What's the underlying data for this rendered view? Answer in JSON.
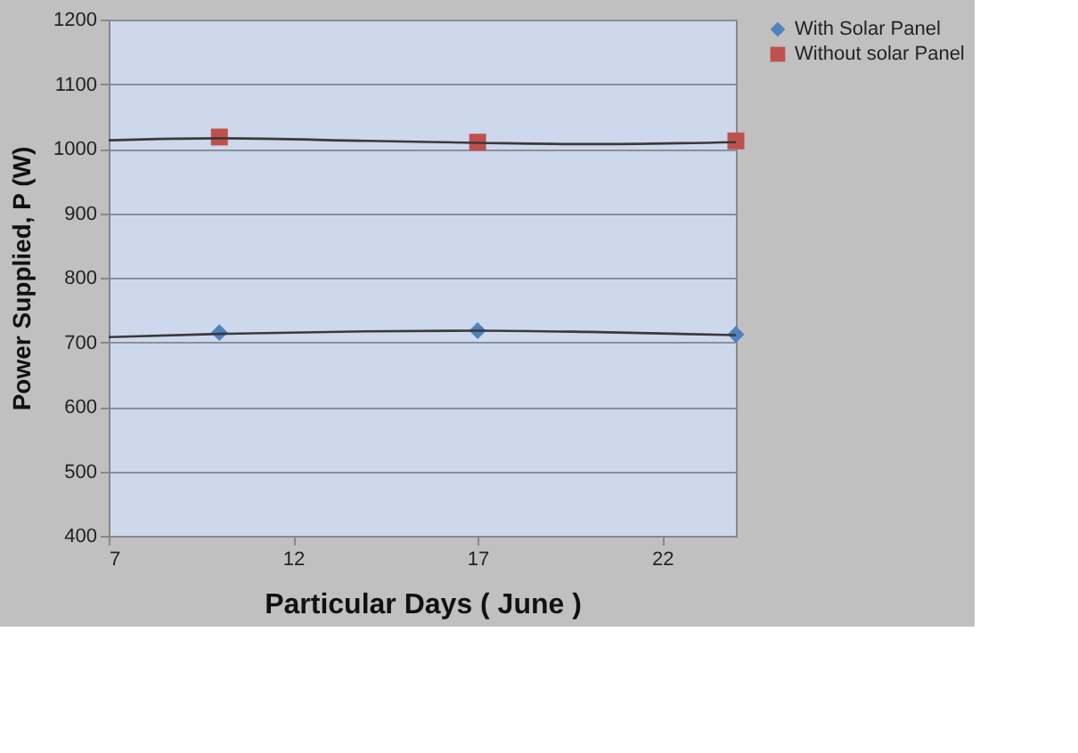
{
  "chart_data": {
    "type": "scatter",
    "xlabel": "Particular Days ( June )",
    "ylabel": "Power Supplied, P (W)",
    "xlim": [
      7,
      24
    ],
    "xticks": [
      7,
      12,
      17,
      22
    ],
    "ylim": [
      400,
      1200
    ],
    "yticks": [
      400,
      500,
      600,
      700,
      800,
      900,
      1000,
      1100,
      1200
    ],
    "grid": "y",
    "legend": "top right",
    "series": [
      {
        "name": "With Solar Panel",
        "color": "#4f81bd",
        "marker": "diamond",
        "x": [
          10,
          17,
          24
        ],
        "values": [
          715,
          718,
          712
        ]
      },
      {
        "name": "Without solar Panel",
        "color": "#c0504d",
        "marker": "square",
        "x": [
          10,
          17,
          24
        ],
        "values": [
          1018,
          1010,
          1012
        ]
      },
      {
        "type": "line",
        "color": "#3a3a3a",
        "marker": "none",
        "x": [
          7,
          10,
          14,
          17,
          20,
          24
        ],
        "values": [
          708,
          713,
          717,
          718,
          716,
          711
        ]
      },
      {
        "type": "line",
        "color": "#3a3a3a",
        "marker": "none",
        "x": [
          7,
          10,
          14,
          17,
          20,
          24
        ],
        "values": [
          1013,
          1016,
          1012,
          1009,
          1007,
          1010
        ]
      }
    ]
  }
}
